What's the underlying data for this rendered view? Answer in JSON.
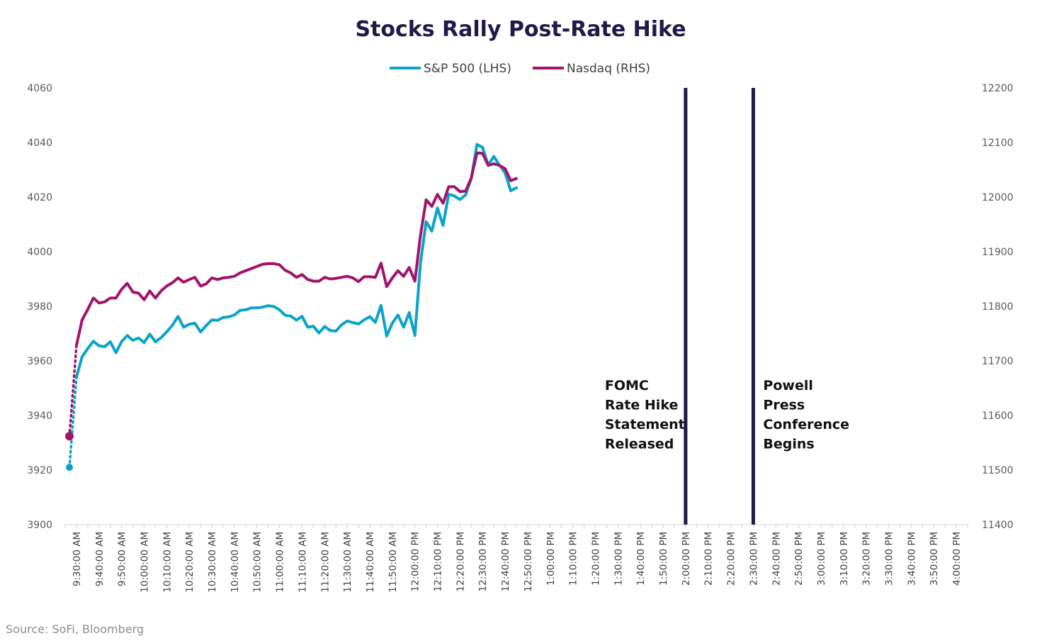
{
  "chart_data": {
    "type": "line",
    "title": "Stocks Rally Post-Rate Hike",
    "source": "Source: SoFi, Bloomberg",
    "y_left": {
      "min": 3900,
      "max": 4060,
      "ticks": [
        "3900",
        "3920",
        "3940",
        "3960",
        "3980",
        "4000",
        "4020",
        "4040",
        "4060"
      ]
    },
    "y_right": {
      "min": 11400,
      "max": 12200,
      "ticks": [
        "11400",
        "11500",
        "11600",
        "11700",
        "11800",
        "11900",
        "12000",
        "12100",
        "12200"
      ]
    },
    "x_labels": [
      "9:30:00 AM",
      "9:40:00 AM",
      "9:50:00 AM",
      "10:00:00 AM",
      "10:10:00 AM",
      "10:20:00 AM",
      "10:30:00 AM",
      "10:40:00 AM",
      "10:50:00 AM",
      "11:00:00 AM",
      "11:10:00 AM",
      "11:20:00 AM",
      "11:30:00 AM",
      "11:40:00 AM",
      "11:50:00 AM",
      "12:00:00 PM",
      "12:10:00 PM",
      "12:20:00 PM",
      "12:30:00 PM",
      "12:40:00 PM",
      "12:50:00 PM",
      "1:00:00 PM",
      "1:10:00 PM",
      "1:20:00 PM",
      "1:30:00 PM",
      "1:40:00 PM",
      "1:50:00 PM",
      "2:00:00 PM",
      "2:10:00 PM",
      "2:20:00 PM",
      "2:30:00 PM",
      "2:40:00 PM",
      "2:50:00 PM",
      "3:00:00 PM",
      "3:10:00 PM",
      "3:20:00 PM",
      "3:30:00 PM",
      "3:40:00 PM",
      "3:50:00 PM",
      "4:00:00 PM"
    ],
    "series": [
      {
        "name": "S&P 500 (LHS)",
        "axis": "left",
        "color": "#0aa3c9",
        "prior_close": 3921,
        "values": [
          3954,
          3961.5,
          3964.5,
          3967.2,
          3965.5,
          3965.2,
          3967,
          3963,
          3967,
          3969.3,
          3967.5,
          3968.4,
          3966.7,
          3969.8,
          3967,
          3968.5,
          3970.6,
          3973,
          3976.3,
          3972.3,
          3973.4,
          3973.8,
          3970.6,
          3972.9,
          3975,
          3974.8,
          3975.9,
          3976.1,
          3976.8,
          3978.5,
          3978.7,
          3979.4,
          3979.4,
          3979.7,
          3980.2,
          3979.9,
          3978.7,
          3976.7,
          3976.4,
          3974.9,
          3976.3,
          3972.3,
          3972.7,
          3970.2,
          3972.6,
          3971.1,
          3970.9,
          3973.2,
          3974.6,
          3974,
          3973.5,
          3975,
          3976.2,
          3974.1,
          3980.3,
          3969.1,
          3973.8,
          3976.8,
          3972.3,
          3977.7,
          3969.3,
          3995.9,
          4011,
          4007.5,
          4016,
          4009.6,
          4021.1,
          4020.4,
          4019.1,
          4020.8,
          4026.8,
          4039.3,
          4038.2,
          4031.7,
          4034.9,
          4031.7,
          4028.8,
          4022.3,
          4023.4
        ]
      },
      {
        "name": "Nasdaq (RHS)",
        "axis": "right",
        "color": "#a3136b",
        "prior_close": 11562,
        "values": [
          11728,
          11775,
          11794,
          11815,
          11806,
          11808,
          11815,
          11815,
          11831,
          11842,
          11826,
          11824,
          11812,
          11828,
          11815,
          11828,
          11837,
          11843,
          11852,
          11844,
          11849,
          11853,
          11837,
          11841,
          11852,
          11849,
          11852,
          11853,
          11855,
          11861,
          11865,
          11869,
          11873,
          11877,
          11878,
          11878,
          11876,
          11866,
          11861,
          11853,
          11858,
          11849,
          11846,
          11846,
          11853,
          11850,
          11851,
          11853,
          11855,
          11852,
          11845,
          11854,
          11854,
          11853,
          11879,
          11836,
          11852,
          11865,
          11855,
          11871,
          11846,
          11930,
          11995,
          11983,
          12005,
          11989,
          12019,
          12019,
          12010,
          12011,
          12035,
          12081,
          12080,
          12058,
          12061,
          12058,
          12052,
          12030,
          12034
        ]
      }
    ],
    "annotations": [
      {
        "at_label": "2:00:00 PM",
        "lines": [
          "FOMC",
          "Rate Hike",
          "Statement",
          "Released"
        ]
      },
      {
        "at_label": "2:30:00 PM",
        "lines": [
          "Powell",
          "Press",
          "Conference",
          "Begins"
        ]
      }
    ],
    "grid": false,
    "legend_position": "top"
  }
}
